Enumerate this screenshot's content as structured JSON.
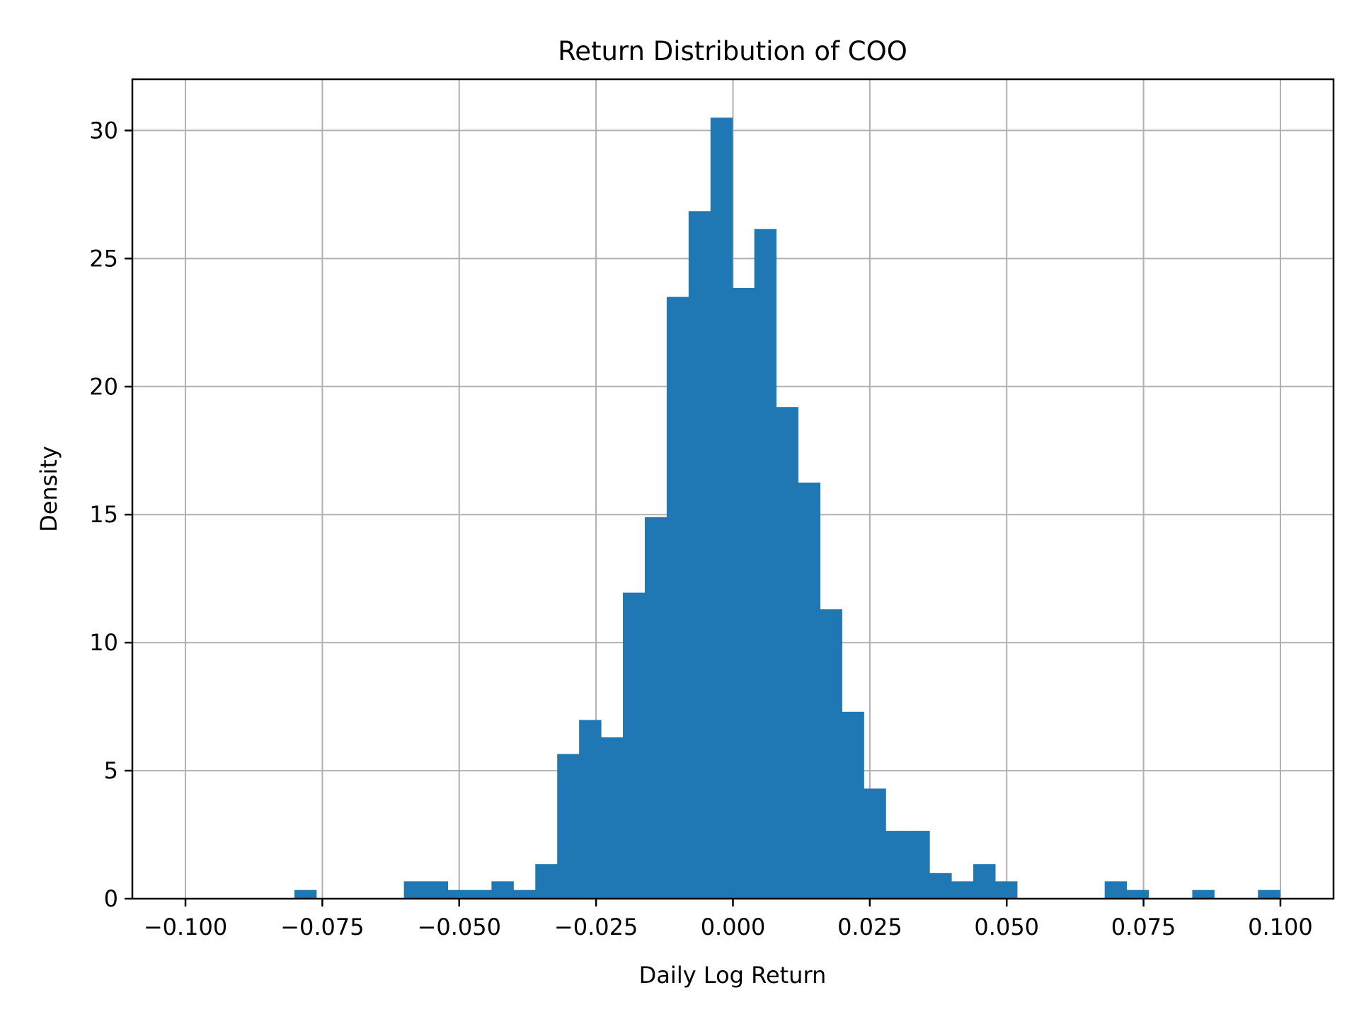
{
  "chart_data": {
    "type": "bar",
    "title": "Return Distribution of COO",
    "xlabel": "Daily Log Return",
    "ylabel": "Density",
    "xlim": [
      -0.1097,
      0.1097
    ],
    "ylim": [
      0,
      32.0
    ],
    "grid": true,
    "legend": null,
    "bar_color": "#1f77b4",
    "x_ticks": [
      -0.1,
      -0.075,
      -0.05,
      -0.025,
      0.0,
      0.025,
      0.05,
      0.075,
      0.1
    ],
    "x_tick_labels": [
      "−0.100",
      "−0.075",
      "−0.050",
      "−0.025",
      "0.000",
      "0.025",
      "0.050",
      "0.075",
      "0.100"
    ],
    "y_ticks": [
      0,
      5,
      10,
      15,
      20,
      25,
      30
    ],
    "y_tick_labels": [
      "0",
      "5",
      "10",
      "15",
      "20",
      "25",
      "30"
    ],
    "bin_start": -0.0801,
    "bin_width": 0.004,
    "values": [
      0.34,
      0,
      0,
      0,
      0,
      0.68,
      0.68,
      0.34,
      0.34,
      0.68,
      0.34,
      1.35,
      5.65,
      6.98,
      6.3,
      11.95,
      14.9,
      23.5,
      26.85,
      30.5,
      23.85,
      26.15,
      19.2,
      16.25,
      11.3,
      7.3,
      4.3,
      2.65,
      2.65,
      1.0,
      0.68,
      1.35,
      0.68,
      0,
      0,
      0,
      0,
      0.68,
      0.34,
      0,
      0,
      0.34,
      0,
      0,
      0.34
    ]
  }
}
